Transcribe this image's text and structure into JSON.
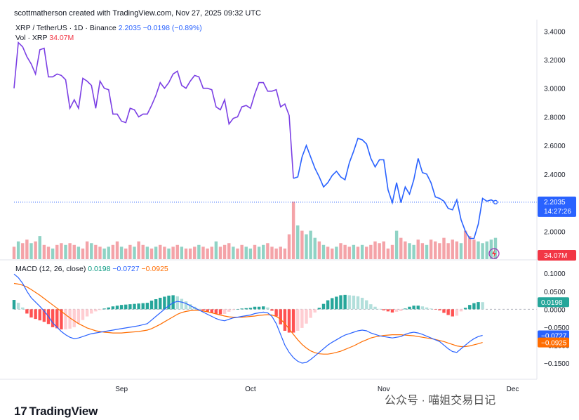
{
  "header": {
    "text": "scottmatherson created with TradingView.com, Nov 27, 2025 09:32 UTC"
  },
  "legend": {
    "symbol": "XRP / TetherUS · 1D · Binance",
    "last": "2.2035",
    "change": "−0.0198 (−0.89%)",
    "vol_label": "Vol · XRP",
    "vol_value": "34.07M",
    "macd_label": "MACD (12, 26, close)",
    "macd_v1": "0.0198",
    "macd_v2": "−0.0727",
    "macd_v3": "−0.0925"
  },
  "tags": {
    "price": "2.2035",
    "countdown": "14:27:26",
    "volume": "34.07M",
    "hist": "0.0198",
    "macd": "−0.0727",
    "signal": "−0.0925"
  },
  "footer": {
    "brand": "TradingView"
  },
  "watermark": {
    "text": "公众号 · 喵姐交易日记"
  },
  "colors": {
    "price_up": "#7b3fe4",
    "price_down": "#2962ff",
    "vol_up": "#8fd3c5",
    "vol_down": "#f4a3a8",
    "macd": "#2962ff",
    "signal": "#ff6d00",
    "hist_pos_strong": "#26a69a",
    "hist_pos_weak": "#b2dfdb",
    "hist_neg_strong": "#ff5252",
    "hist_neg_weak": "#ffcdd2"
  },
  "chart_data": [
    {
      "type": "line",
      "title": "XRP / TetherUS · 1D · Binance",
      "x_labels": [
        "Sep",
        "Oct",
        "Nov",
        "Dec"
      ],
      "y_ticks": [
        2.0,
        2.2,
        2.4,
        2.6,
        2.8,
        3.0,
        3.2,
        3.4
      ],
      "ylim": [
        1.8,
        3.48
      ],
      "grid": false,
      "values": [
        3.0,
        3.32,
        3.29,
        3.22,
        3.17,
        3.1,
        3.27,
        3.28,
        3.08,
        3.08,
        3.1,
        3.09,
        3.06,
        2.86,
        2.92,
        2.86,
        3.07,
        3.05,
        3.02,
        2.86,
        3.05,
        3.0,
        2.99,
        2.82,
        2.82,
        2.77,
        2.76,
        2.86,
        2.85,
        2.8,
        2.82,
        2.82,
        2.88,
        2.95,
        3.04,
        3.0,
        3.04,
        3.1,
        3.12,
        3.02,
        3.0,
        3.05,
        3.09,
        3.08,
        3.0,
        3.0,
        2.99,
        2.87,
        2.85,
        2.92,
        2.75,
        2.79,
        2.8,
        2.87,
        2.88,
        2.86,
        2.96,
        3.04,
        3.04,
        2.98,
        2.98,
        2.99,
        2.87,
        2.89,
        2.81,
        2.37,
        2.38,
        2.52,
        2.6,
        2.52,
        2.44,
        2.38,
        2.31,
        2.34,
        2.39,
        2.42,
        2.38,
        2.36,
        2.48,
        2.56,
        2.65,
        2.64,
        2.61,
        2.51,
        2.45,
        2.5,
        2.5,
        2.29,
        2.2,
        2.34,
        2.2,
        2.31,
        2.26,
        2.36,
        2.51,
        2.41,
        2.4,
        2.34,
        2.24,
        2.23,
        2.21,
        2.16,
        2.15,
        2.22,
        2.08,
        2.0,
        1.95,
        1.95,
        2.05,
        2.23,
        2.21,
        2.22,
        2.2035
      ]
    },
    {
      "type": "bar",
      "title": "Vol · XRP",
      "last": "34.07M",
      "up": [
        false,
        true,
        false,
        false,
        true,
        false,
        true,
        false,
        false,
        true,
        false,
        false,
        true,
        false,
        false,
        true,
        false,
        false,
        true,
        false,
        false,
        true,
        true,
        false,
        false,
        true,
        false,
        false,
        true,
        false,
        false,
        true,
        false,
        true,
        false,
        false,
        true,
        false,
        false,
        true,
        false,
        false,
        false,
        true,
        false,
        false,
        false,
        true,
        false,
        false,
        false,
        true,
        false,
        false,
        true,
        true,
        false,
        true,
        true,
        false,
        false,
        false,
        false,
        false,
        false,
        false,
        true,
        false,
        true,
        true,
        true,
        false,
        true,
        false,
        false,
        true,
        false,
        false,
        false,
        true,
        false,
        true,
        false,
        false,
        false,
        false,
        false,
        false,
        false,
        true,
        false,
        false,
        true,
        true,
        false,
        false,
        true,
        false,
        false,
        false,
        false,
        false,
        false,
        false,
        true,
        false,
        false,
        false,
        true,
        true,
        true,
        true,
        true
      ],
      "values": [
        0.35,
        0.5,
        0.45,
        0.55,
        0.45,
        0.5,
        0.65,
        0.4,
        0.35,
        0.3,
        0.4,
        0.45,
        0.4,
        0.45,
        0.4,
        0.35,
        0.3,
        0.5,
        0.45,
        0.4,
        0.35,
        0.3,
        0.35,
        0.4,
        0.5,
        0.35,
        0.3,
        0.4,
        0.35,
        0.5,
        0.4,
        0.35,
        0.3,
        0.35,
        0.4,
        0.35,
        0.3,
        0.35,
        0.4,
        0.35,
        0.3,
        0.3,
        0.35,
        0.4,
        0.35,
        0.3,
        0.35,
        0.5,
        0.35,
        0.4,
        0.45,
        0.35,
        0.3,
        0.4,
        0.35,
        0.3,
        0.4,
        0.35,
        0.4,
        0.45,
        0.35,
        0.3,
        0.35,
        0.3,
        0.7,
        1.62,
        0.95,
        0.8,
        0.7,
        0.8,
        0.6,
        0.5,
        0.4,
        0.35,
        0.3,
        0.35,
        0.45,
        0.4,
        0.35,
        0.4,
        0.35,
        0.4,
        0.35,
        0.4,
        0.5,
        0.45,
        0.5,
        0.3,
        0.4,
        0.8,
        0.6,
        0.5,
        0.45,
        0.4,
        0.55,
        0.45,
        0.4,
        0.55,
        0.5,
        0.45,
        0.6,
        0.45,
        0.55,
        0.5,
        0.45,
        0.8,
        0.65,
        0.55,
        0.5,
        0.45,
        0.5,
        0.55,
        0.6
      ]
    },
    {
      "type": "line",
      "title": "MACD (12, 26, close)",
      "y_ticks": [
        0.1,
        0.05,
        0.0,
        -0.05,
        -0.1,
        -0.15
      ],
      "ylim": [
        -0.195,
        0.118
      ],
      "macd": [
        0.098,
        0.088,
        0.072,
        0.05,
        0.032,
        0.02,
        0.008,
        -0.005,
        -0.02,
        -0.038,
        -0.05,
        -0.062,
        -0.071,
        -0.078,
        -0.082,
        -0.08,
        -0.076,
        -0.072,
        -0.068,
        -0.066,
        -0.064,
        -0.062,
        -0.06,
        -0.058,
        -0.056,
        -0.054,
        -0.052,
        -0.05,
        -0.048,
        -0.046,
        -0.043,
        -0.04,
        -0.03,
        -0.02,
        -0.01,
        0.0,
        0.01,
        0.018,
        0.022,
        0.02,
        0.016,
        0.01,
        0.004,
        -0.002,
        -0.008,
        -0.014,
        -0.02,
        -0.026,
        -0.03,
        -0.032,
        -0.028,
        -0.024,
        -0.022,
        -0.02,
        -0.018,
        -0.016,
        -0.012,
        -0.01,
        -0.008,
        -0.01,
        -0.02,
        -0.04,
        -0.07,
        -0.1,
        -0.12,
        -0.135,
        -0.145,
        -0.15,
        -0.148,
        -0.14,
        -0.13,
        -0.12,
        -0.11,
        -0.1,
        -0.092,
        -0.085,
        -0.078,
        -0.072,
        -0.068,
        -0.064,
        -0.06,
        -0.058,
        -0.06,
        -0.066,
        -0.07,
        -0.074,
        -0.076,
        -0.078,
        -0.08,
        -0.078,
        -0.076,
        -0.07,
        -0.066,
        -0.064,
        -0.066,
        -0.07,
        -0.075,
        -0.08,
        -0.085,
        -0.09,
        -0.1,
        -0.11,
        -0.118,
        -0.12,
        -0.11,
        -0.1,
        -0.09,
        -0.082,
        -0.076,
        -0.0727
      ],
      "signal": [
        0.072,
        0.07,
        0.067,
        0.062,
        0.055,
        0.047,
        0.039,
        0.03,
        0.021,
        0.012,
        0.003,
        -0.006,
        -0.015,
        -0.024,
        -0.032,
        -0.04,
        -0.046,
        -0.052,
        -0.056,
        -0.06,
        -0.062,
        -0.064,
        -0.065,
        -0.066,
        -0.066,
        -0.066,
        -0.065,
        -0.064,
        -0.063,
        -0.062,
        -0.06,
        -0.058,
        -0.054,
        -0.048,
        -0.042,
        -0.035,
        -0.028,
        -0.021,
        -0.014,
        -0.009,
        -0.006,
        -0.004,
        -0.003,
        -0.003,
        -0.005,
        -0.007,
        -0.01,
        -0.013,
        -0.016,
        -0.019,
        -0.021,
        -0.022,
        -0.022,
        -0.022,
        -0.021,
        -0.02,
        -0.019,
        -0.017,
        -0.016,
        -0.015,
        -0.016,
        -0.02,
        -0.028,
        -0.04,
        -0.055,
        -0.07,
        -0.085,
        -0.098,
        -0.108,
        -0.116,
        -0.121,
        -0.124,
        -0.125,
        -0.125,
        -0.123,
        -0.12,
        -0.117,
        -0.112,
        -0.107,
        -0.102,
        -0.096,
        -0.09,
        -0.085,
        -0.08,
        -0.077,
        -0.075,
        -0.073,
        -0.072,
        -0.071,
        -0.071,
        -0.071,
        -0.072,
        -0.073,
        -0.074,
        -0.076,
        -0.078,
        -0.08,
        -0.082,
        -0.084,
        -0.087,
        -0.09,
        -0.094,
        -0.098,
        -0.102,
        -0.104,
        -0.104,
        -0.102,
        -0.099,
        -0.096,
        -0.0925
      ],
      "hist_last": 0.0198
    }
  ]
}
